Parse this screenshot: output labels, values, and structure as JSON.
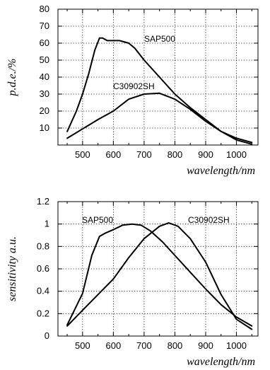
{
  "chart_data": [
    {
      "type": "line",
      "xlabel": "wavelength/nm",
      "ylabel": "p.d.e./%",
      "xlim": [
        420,
        1070
      ],
      "ylim": [
        0,
        80
      ],
      "xticks": [
        500,
        600,
        700,
        800,
        900,
        1000
      ],
      "yticks": [
        10,
        20,
        30,
        40,
        50,
        60,
        70,
        80
      ],
      "grid": true,
      "series": [
        {
          "name": "SAP500",
          "x": [
            450,
            480,
            500,
            520,
            540,
            555,
            565,
            580,
            600,
            620,
            650,
            670,
            700,
            750,
            800,
            850,
            900,
            950,
            1000,
            1050
          ],
          "y": [
            8,
            20,
            30,
            42,
            56,
            63,
            63,
            61.5,
            61.5,
            61.5,
            60,
            57,
            50,
            40,
            30,
            22,
            15,
            8,
            4,
            1.5
          ]
        },
        {
          "name": "C30902SH",
          "x": [
            450,
            500,
            550,
            600,
            650,
            700,
            750,
            800,
            850,
            900,
            950,
            1000,
            1050
          ],
          "y": [
            4,
            9.5,
            15,
            20,
            27,
            30,
            30.5,
            27,
            21,
            14,
            8,
            3,
            0.5
          ]
        }
      ]
    },
    {
      "type": "line",
      "xlabel": "wavelength/nm",
      "ylabel": "sensitivity a.u.",
      "xlim": [
        420,
        1070
      ],
      "ylim": [
        0,
        1.2
      ],
      "xticks": [
        500,
        600,
        700,
        800,
        900,
        1000
      ],
      "yticks": [
        0,
        0.2,
        0.4,
        0.6,
        0.8,
        1,
        1.2
      ],
      "grid": true,
      "series": [
        {
          "name": "SAP500",
          "x": [
            450,
            500,
            530,
            555,
            575,
            600,
            630,
            660,
            690,
            720,
            760,
            800,
            850,
            900,
            950,
            1000,
            1050
          ],
          "y": [
            0.1,
            0.38,
            0.72,
            0.89,
            0.92,
            0.95,
            0.99,
            1.0,
            0.99,
            0.94,
            0.84,
            0.72,
            0.57,
            0.42,
            0.28,
            0.17,
            0.09
          ]
        },
        {
          "name": "C30902SH",
          "x": [
            450,
            500,
            550,
            600,
            650,
            700,
            750,
            780,
            810,
            850,
            900,
            950,
            1000,
            1050
          ],
          "y": [
            0.09,
            0.23,
            0.37,
            0.51,
            0.7,
            0.87,
            0.98,
            1.01,
            0.98,
            0.87,
            0.66,
            0.37,
            0.15,
            0.06
          ]
        }
      ]
    }
  ]
}
